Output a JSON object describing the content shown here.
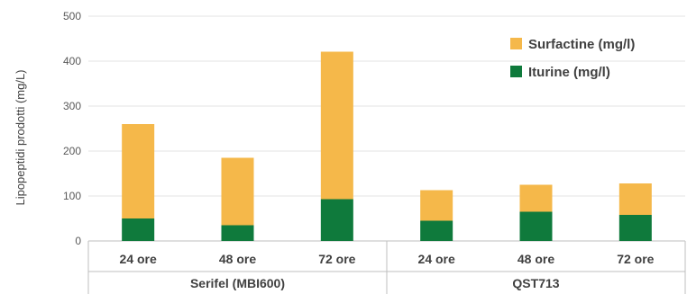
{
  "chart_data": {
    "type": "bar",
    "stacked": true,
    "ylabel": "Lipopeptidi prodotti (mg/L)",
    "ylim": [
      0,
      500
    ],
    "yticks": [
      0,
      100,
      200,
      300,
      400,
      500
    ],
    "categories": [
      "24 ore",
      "48 ore",
      "72 ore",
      "24 ore",
      "48 ore",
      "72 ore"
    ],
    "groups": [
      {
        "label": "Serifel (MBI600)",
        "span": [
          0,
          2
        ]
      },
      {
        "label": "QST713",
        "span": [
          3,
          5
        ]
      }
    ],
    "series": [
      {
        "name": "Iturine (mg/l)",
        "color": "#0f7a3c",
        "values": [
          50,
          35,
          93,
          45,
          65,
          58
        ]
      },
      {
        "name": "Surfactine (mg/l)",
        "color": "#f5b84a",
        "values": [
          210,
          150,
          328,
          68,
          60,
          70
        ]
      }
    ],
    "legend": {
      "position": "top-right",
      "order": [
        "Surfactine (mg/l)",
        "Iturine (mg/l)"
      ]
    },
    "grid": true
  }
}
